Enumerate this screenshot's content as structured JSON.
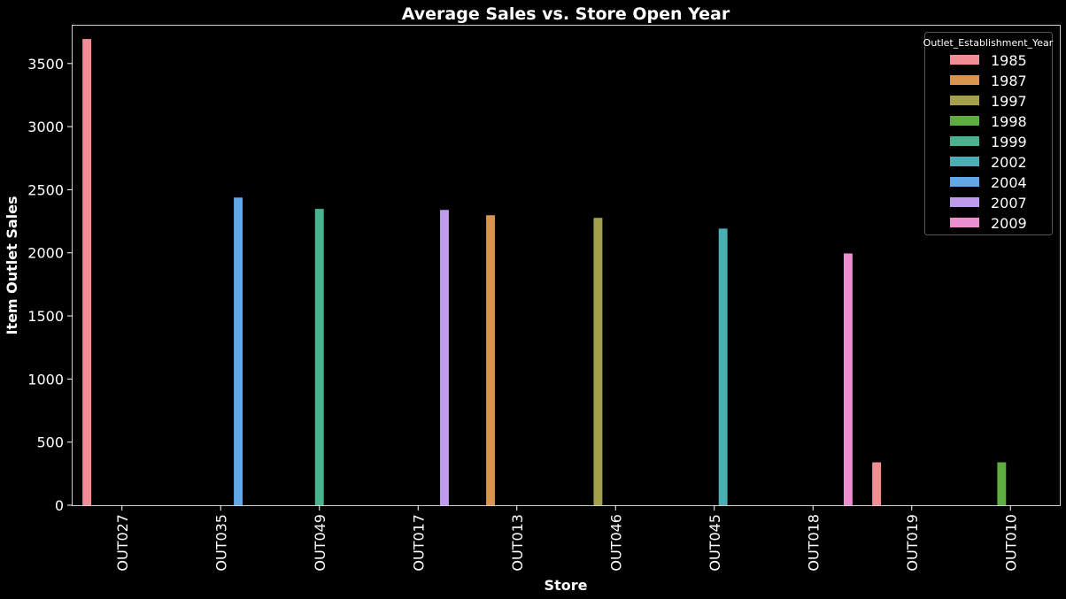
{
  "chart_data": {
    "type": "bar",
    "title": "Average Sales vs. Store Open Year",
    "xlabel": "Store",
    "ylabel": "Item Outlet Sales",
    "ylim": [
      0,
      3800
    ],
    "yticks": [
      0,
      500,
      1000,
      1500,
      2000,
      2500,
      3000,
      3500
    ],
    "grid": false,
    "legend_position": "top-right",
    "legend_title": "Outlet_Establishment_Year",
    "categories": [
      "OUT027",
      "OUT035",
      "OUT049",
      "OUT017",
      "OUT013",
      "OUT046",
      "OUT045",
      "OUT018",
      "OUT019",
      "OUT010"
    ],
    "series": [
      {
        "name": "1985",
        "color": "#f08e94",
        "values": [
          3694,
          0,
          0,
          0,
          0,
          0,
          0,
          0,
          340,
          0
        ]
      },
      {
        "name": "1987",
        "color": "#d7954f",
        "values": [
          0,
          0,
          0,
          0,
          2298,
          0,
          0,
          0,
          0,
          0
        ]
      },
      {
        "name": "1997",
        "color": "#a5a04a",
        "values": [
          0,
          0,
          0,
          0,
          0,
          2277,
          0,
          0,
          0,
          0
        ]
      },
      {
        "name": "1998",
        "color": "#5eae3f",
        "values": [
          0,
          0,
          0,
          0,
          0,
          0,
          0,
          0,
          0,
          340
        ]
      },
      {
        "name": "1999",
        "color": "#49b390",
        "values": [
          0,
          0,
          2348,
          0,
          0,
          0,
          0,
          0,
          0,
          0
        ]
      },
      {
        "name": "2002",
        "color": "#4aaeb5",
        "values": [
          0,
          0,
          0,
          0,
          0,
          0,
          2192,
          0,
          0,
          0
        ]
      },
      {
        "name": "2004",
        "color": "#61a8e8",
        "values": [
          0,
          2438,
          0,
          0,
          0,
          0,
          0,
          0,
          0,
          0
        ]
      },
      {
        "name": "2007",
        "color": "#c09bec",
        "values": [
          0,
          0,
          0,
          2340,
          0,
          0,
          0,
          0,
          0,
          0
        ]
      },
      {
        "name": "2009",
        "color": "#ec8fd1",
        "values": [
          0,
          0,
          0,
          0,
          0,
          0,
          0,
          1995,
          0,
          0
        ]
      }
    ]
  }
}
